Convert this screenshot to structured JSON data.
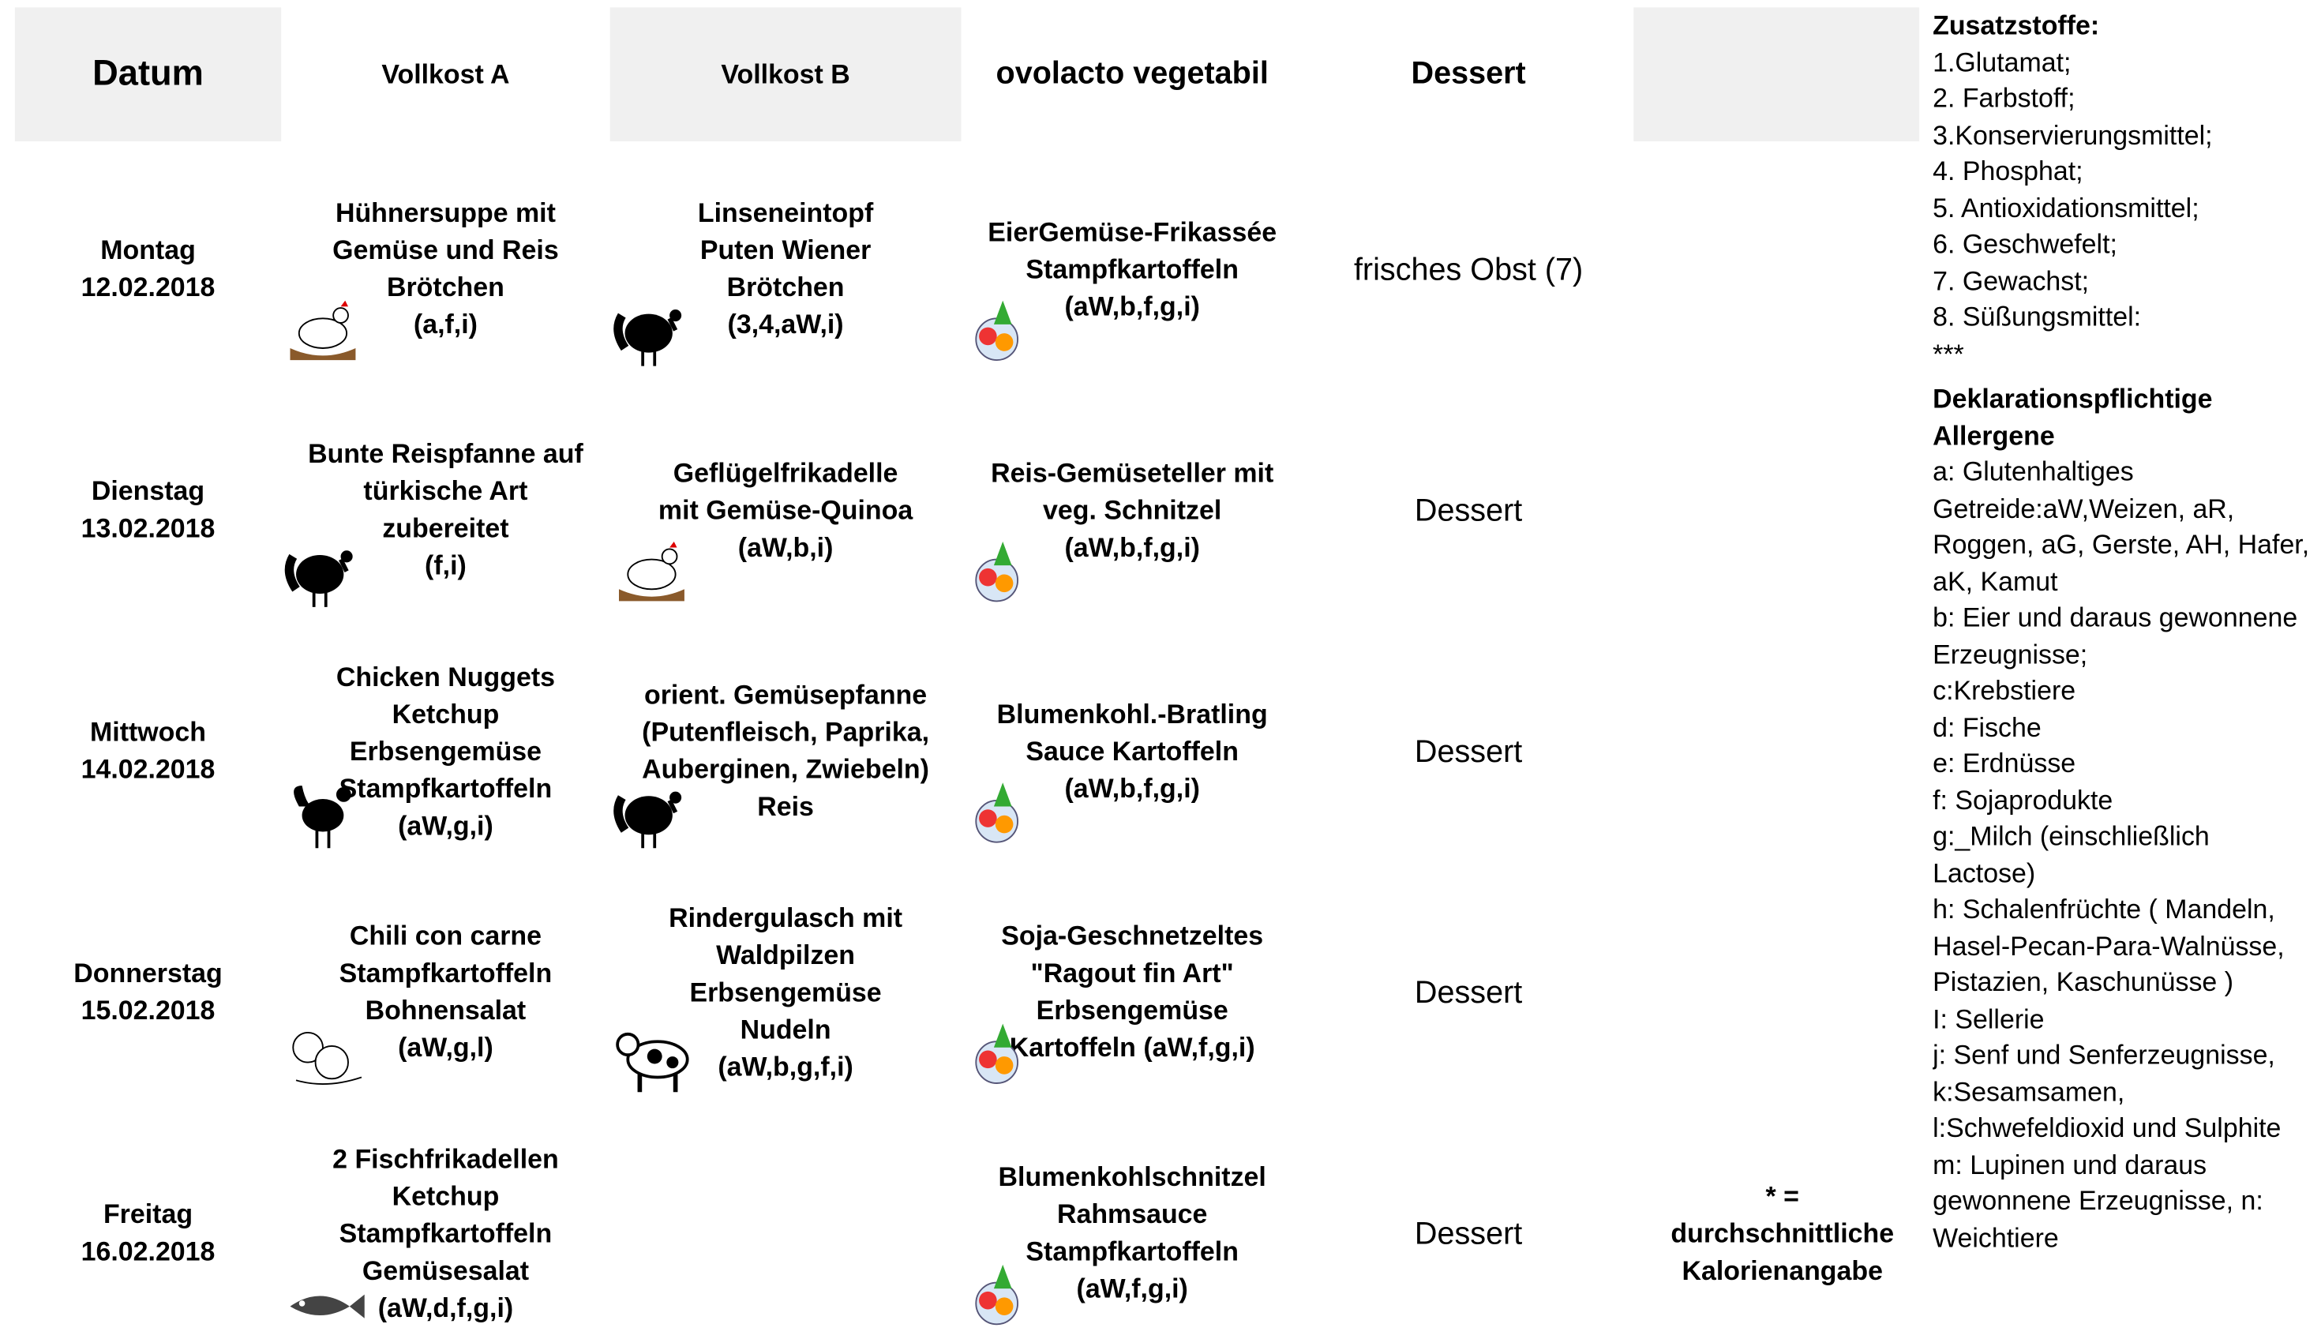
{
  "header": {
    "columns": [
      "Datum",
      "Vollkost A",
      "Vollkost B",
      "ovolacto vegetabil",
      "Dessert"
    ]
  },
  "rows": [
    {
      "day": "Montag",
      "date": "12.02.2018",
      "a": [
        "Hühnersuppe mit",
        "Gemüse und Reis",
        "Brötchen",
        "(a,f,i)"
      ],
      "b": [
        "Linseneintopf",
        "Puten Wiener",
        "Brötchen",
        "(3,4,aW,i)"
      ],
      "c": [
        "EierGemüse-Frikassée",
        "Stampfkartoffeln",
        "(aW,b,f,g,i)"
      ],
      "dessert": "frisches Obst (7)"
    },
    {
      "day": "Dienstag",
      "date": "13.02.2018",
      "a": [
        "Bunte Reispfanne auf",
        "türkische Art",
        "zubereitet",
        "(f,i)"
      ],
      "b": [
        "Geflügelfrikadelle",
        "mit Gemüse-Quinoa",
        "(aW,b,i)"
      ],
      "c": [
        "Reis-Gemüseteller mit",
        "veg. Schnitzel",
        "(aW,b,f,g,i)"
      ],
      "dessert": "Dessert"
    },
    {
      "day": "Mittwoch",
      "date": "14.02.2018",
      "a": [
        "Chicken Nuggets",
        "Ketchup",
        "Erbsengemüse",
        "Stampfkartoffeln",
        "(aW,g,i)"
      ],
      "b": [
        "orient. Gemüsepfanne",
        "(Putenfleisch, Paprika,",
        "Auberginen,  Zwiebeln)",
        "Reis"
      ],
      "c": [
        "Blumenkohl.-Bratling",
        "Sauce Kartoffeln",
        "(aW,b,f,g,i)"
      ],
      "dessert": "Dessert"
    },
    {
      "day": "Donnerstag",
      "date": "15.02.2018",
      "a": [
        "Chili con carne",
        "Stampfkartoffeln",
        "Bohnensalat",
        "(aW,g,l)"
      ],
      "b": [
        "Rindergulasch mit",
        "Waldpilzen",
        "Erbsengemüse",
        "Nudeln",
        "(aW,b,g,f,i)"
      ],
      "c": [
        "Soja-Geschnetzeltes",
        "\"Ragout fin Art\"",
        "Erbsengemüse",
        "Kartoffeln   (aW,f,g,i)"
      ],
      "dessert": "Dessert"
    },
    {
      "day": "Freitag",
      "date": "16.02.2018",
      "a": [
        "2 Fischfrikadellen",
        "Ketchup",
        "Stampfkartoffeln",
        "Gemüsesalat",
        "(aW,d,f,g,i)"
      ],
      "b": [],
      "c": [
        "Blumenkohlschnitzel",
        "Rahmsauce",
        "Stampfkartoffeln",
        "(aW,f,g,i)"
      ],
      "dessert": "Dessert"
    }
  ],
  "note": [
    "* =",
    "durchschnittliche",
    "Kalorienangabe"
  ],
  "legend": {
    "additives_title": "Zusatzstoffe:",
    "additives": [
      "1.Glutamat;",
      "2. Farbstoff;",
      "3.Konservierungsmittel;",
      "4. Phosphat;",
      "5. Antioxidationsmittel;",
      "6. Geschwefelt;",
      "7. Gewachst;",
      "8. Süßungsmittel:",
      "***"
    ],
    "allergens_title": "Deklarationspflichtige Allergene",
    "allergens": [
      "a: Glutenhaltiges Getreide:aW,Weizen, aR, Roggen, aG, Gerste, AH, Hafer, aK, Kamut",
      "b: Eier und daraus gewonnene Erzeugnisse;",
      "c:Krebstiere",
      "d: Fische",
      "e: Erdnüsse",
      "f: Sojaprodukte",
      "g:_Milch  (einschließlich Lactose)",
      "h: Schalenfrüchte ( Mandeln, Hasel-Pecan-Para-Walnüsse, Pistazien, Kaschunüsse )",
      "I: Sellerie",
      "j: Senf und Senferzeugnisse,",
      "k:Sesamsamen,",
      "l:Schwefeldioxid und Sulphite",
      "m: Lupinen und daraus gewonnene Erzeugnisse,  n: Weichtiere"
    ]
  }
}
